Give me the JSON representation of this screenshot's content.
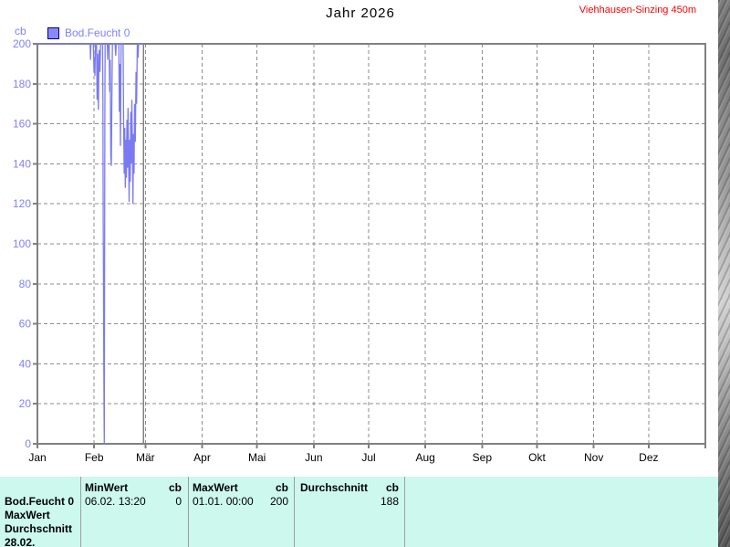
{
  "header": {
    "title": "Jahr 2026",
    "station": "Viehhausen-Sinzing 450m"
  },
  "legend": {
    "series_label": "Bod.Feucht 0",
    "unit_label": "cb"
  },
  "chart_data": {
    "type": "line",
    "title": "Jahr 2026",
    "station": "Viehhausen-Sinzing 450m",
    "unit": "cb",
    "grid": "dashed",
    "legend_position": "top-left",
    "x_axis": {
      "tick_labels": [
        "Jan",
        "Feb",
        "Mär",
        "Apr",
        "Mai",
        "Jun",
        "Jul",
        "Aug",
        "Sep",
        "Okt",
        "Nov",
        "Dez"
      ],
      "tick_day_of_year": [
        0,
        31,
        59,
        90,
        120,
        151,
        181,
        212,
        243,
        273,
        304,
        334
      ],
      "range_days": [
        0,
        365
      ]
    },
    "y_axis": {
      "unit": "cb",
      "ticks": [
        0,
        20,
        40,
        60,
        80,
        100,
        120,
        140,
        160,
        180,
        200
      ],
      "range": [
        0,
        200
      ]
    },
    "end_of_data_day": 58,
    "series": [
      {
        "name": "Bod.Feucht 0",
        "points_day_value": [
          [
            0,
            200
          ],
          [
            28.8,
            200
          ],
          [
            29.0,
            192
          ],
          [
            29.2,
            200
          ],
          [
            30.5,
            200
          ],
          [
            30.7,
            195
          ],
          [
            30.9,
            186
          ],
          [
            31.1,
            193
          ],
          [
            31.4,
            184
          ],
          [
            31.7,
            200
          ],
          [
            32.3,
            200
          ],
          [
            32.6,
            172
          ],
          [
            32.9,
            195
          ],
          [
            33.3,
            167
          ],
          [
            33.7,
            197
          ],
          [
            34.2,
            186
          ],
          [
            34.5,
            200
          ],
          [
            35.6,
            200
          ],
          [
            35.8,
            170
          ],
          [
            35.95,
            110
          ],
          [
            36.1,
            86
          ],
          [
            36.3,
            37
          ],
          [
            36.45,
            12
          ],
          [
            36.55,
            0
          ],
          [
            36.7,
            80
          ],
          [
            36.85,
            160
          ],
          [
            37.0,
            200
          ],
          [
            38.2,
            200
          ],
          [
            38.4,
            192
          ],
          [
            38.6,
            200
          ],
          [
            39.2,
            200
          ],
          [
            39.5,
            176
          ],
          [
            39.8,
            192
          ],
          [
            40.1,
            144
          ],
          [
            40.4,
            139
          ],
          [
            40.7,
            172
          ],
          [
            41.0,
            200
          ],
          [
            42.5,
            200
          ],
          [
            42.8,
            194
          ],
          [
            43.1,
            200
          ],
          [
            44.5,
            200
          ],
          [
            44.8,
            166
          ],
          [
            45.1,
            190
          ],
          [
            45.4,
            149
          ],
          [
            45.7,
            200
          ],
          [
            46.8,
            200
          ],
          [
            47.1,
            160
          ],
          [
            47.4,
            135
          ],
          [
            47.7,
            158
          ],
          [
            48.0,
            128
          ],
          [
            48.3,
            152
          ],
          [
            48.6,
            133
          ],
          [
            48.9,
            162
          ],
          [
            49.2,
            138
          ],
          [
            49.5,
            168
          ],
          [
            49.8,
            145
          ],
          [
            50.1,
            121
          ],
          [
            50.4,
            152
          ],
          [
            50.7,
            131
          ],
          [
            51.0,
            166
          ],
          [
            51.3,
            140
          ],
          [
            51.6,
            172
          ],
          [
            51.9,
            150
          ],
          [
            52.2,
            120
          ],
          [
            52.5,
            155
          ],
          [
            52.8,
            135
          ],
          [
            53.1,
            170
          ],
          [
            53.5,
            151
          ],
          [
            53.9,
            186
          ],
          [
            54.2,
            170
          ],
          [
            54.6,
            200
          ],
          [
            55.0,
            193
          ],
          [
            55.3,
            200
          ],
          [
            58,
            200
          ]
        ]
      }
    ]
  },
  "stats_table": {
    "row_label_lines": [
      "Bod.Feucht 0",
      "MaxWert",
      "Durchschnitt",
      "28.02."
    ],
    "columns": [
      {
        "header": "MinWert",
        "unit": "cb",
        "date": "06.02.  13:20",
        "value": "0"
      },
      {
        "header": "MaxWert",
        "unit": "cb",
        "date": "01.01.  00:00",
        "value": "200"
      },
      {
        "header": "Durchschnitt",
        "unit": "cb",
        "date": "",
        "value": "188"
      }
    ]
  },
  "colors": {
    "station_text": "#ff0000",
    "axis_label_blue": "#8080ff",
    "series_line": "#7a7af2",
    "legend_fill": "#8888f8",
    "legend_border": "#000080",
    "grid": "#8c8c8c",
    "frame": "#808080",
    "table_background": "#ccf8ee",
    "table_separator": "#9e9e9e"
  }
}
